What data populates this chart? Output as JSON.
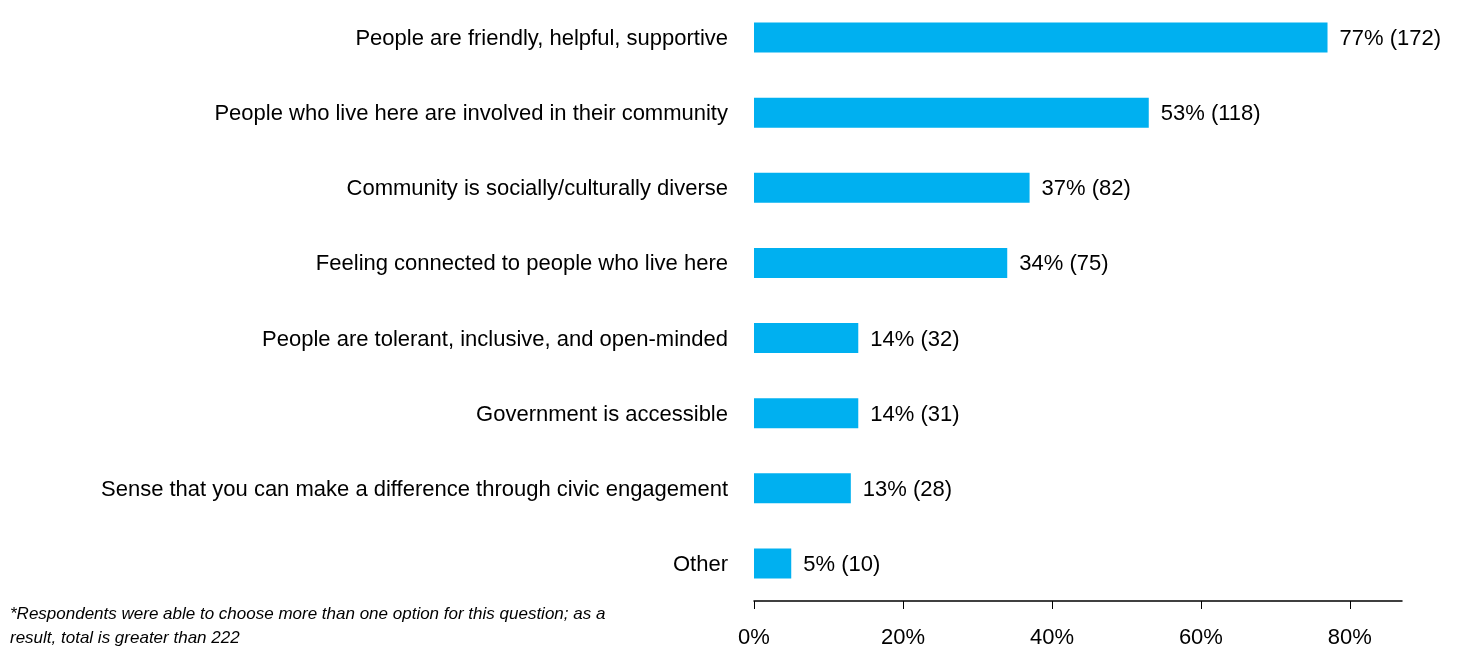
{
  "chart_data": {
    "type": "bar",
    "orientation": "horizontal",
    "categories": [
      "People are friendly, helpful, supportive",
      "People who live here are involved in their community",
      "Community is socially/culturally diverse",
      "Feeling connected to people who live here",
      "People are tolerant, inclusive, and open-minded",
      "Government is accessible",
      "Sense that you can make a difference through civic engagement",
      "Other"
    ],
    "values": [
      77,
      53,
      37,
      34,
      14,
      14,
      13,
      5
    ],
    "value_labels": [
      "77% (172)",
      "53% (118)",
      "37% (82)",
      "34% (75)",
      "14% (32)",
      "14% (31)",
      "13% (28)",
      "5% (10)"
    ],
    "color": "#00b0f0",
    "xlim": [
      0,
      87
    ],
    "xticks": [
      {
        "value": 0,
        "label": "0%"
      },
      {
        "value": 20,
        "label": "20%"
      },
      {
        "value": 40,
        "label": "40%"
      },
      {
        "value": 60,
        "label": "60%"
      },
      {
        "value": 80,
        "label": "80%"
      }
    ],
    "annotations": [
      "*Respondents were able to choose more than one option for this question; as a result, total is greater than 222"
    ]
  }
}
